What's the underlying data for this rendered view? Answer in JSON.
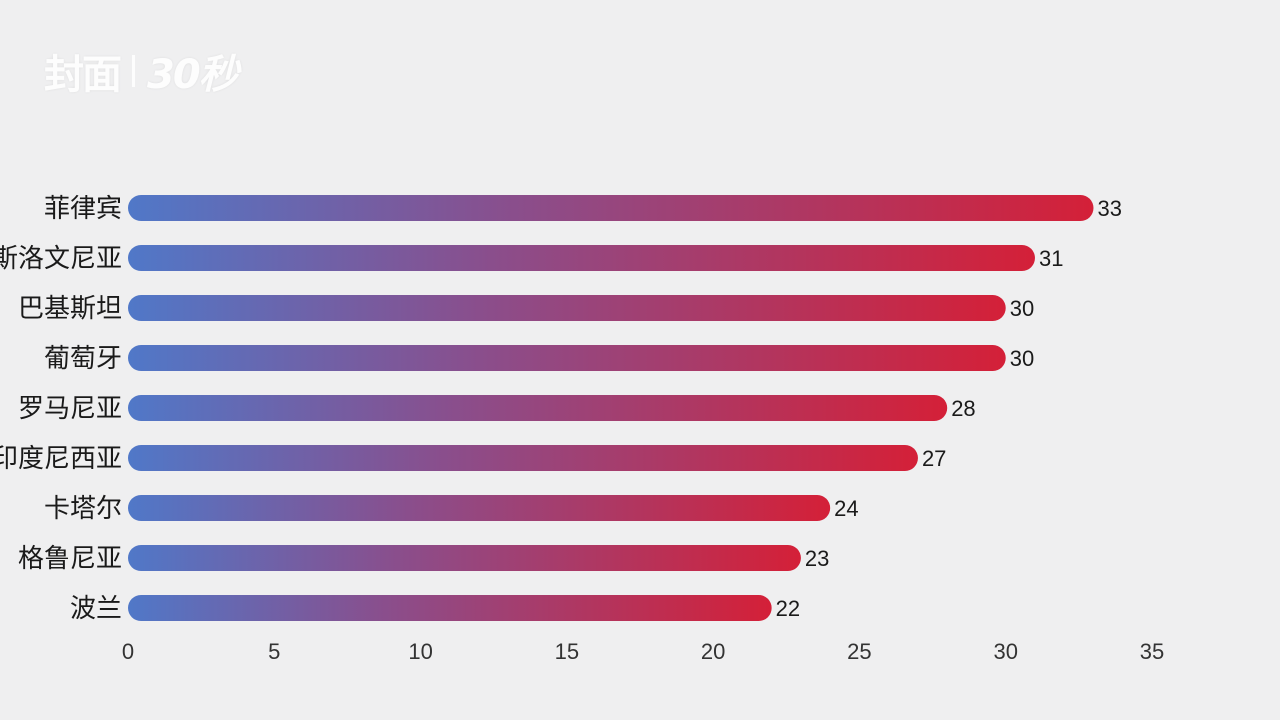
{
  "watermark": {
    "brand": "封面",
    "tag": "30秒"
  },
  "chart_data": {
    "type": "bar",
    "orientation": "horizontal",
    "categories": [
      "菲律宾",
      "斯洛文尼亚",
      "巴基斯坦",
      "葡萄牙",
      "罗马尼亚",
      "印度尼西亚",
      "卡塔尔",
      "格鲁尼亚",
      "波兰"
    ],
    "values": [
      33,
      31,
      30,
      30,
      28,
      27,
      24,
      23,
      22
    ],
    "xlim": [
      0,
      35
    ],
    "xticks": [
      0,
      5,
      10,
      15,
      20,
      25,
      30,
      35
    ],
    "grid": false,
    "colors": {
      "bar_start": "#5078c8",
      "bar_mid": "#8a4e8c",
      "bar_end": "#d42038",
      "background": "#efeff0"
    }
  }
}
